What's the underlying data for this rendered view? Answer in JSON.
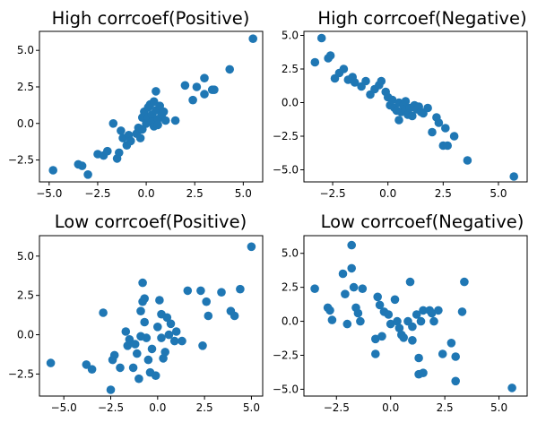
{
  "chart_data": [
    {
      "type": "scatter",
      "title": "High corrcoef(Positive)",
      "xlim": [
        -5.5,
        6.0
      ],
      "ylim": [
        -4.0,
        6.3
      ],
      "xticks": [
        -5.0,
        -2.5,
        0.0,
        2.5,
        5.0
      ],
      "xtick_labels": [
        "−5.0",
        "−2.5",
        "0.0",
        "2.5",
        "5.0"
      ],
      "yticks": [
        -2.5,
        0.0,
        2.5,
        5.0
      ],
      "ytick_labels": [
        "−2.5",
        "0.0",
        "2.5",
        "5.0"
      ],
      "color": "#1f77b4",
      "points": [
        [
          -4.8,
          -3.2
        ],
        [
          -3.5,
          -2.8
        ],
        [
          -3.3,
          -2.9
        ],
        [
          -3.0,
          -3.5
        ],
        [
          -2.5,
          -2.1
        ],
        [
          -2.2,
          -2.2
        ],
        [
          -2.0,
          -1.9
        ],
        [
          -1.5,
          -2.4
        ],
        [
          -1.4,
          -2.0
        ],
        [
          -1.7,
          0.0
        ],
        [
          -1.3,
          -0.5
        ],
        [
          -1.2,
          -1.0
        ],
        [
          -1.0,
          -1.5
        ],
        [
          -0.9,
          -0.8
        ],
        [
          -0.8,
          -1.2
        ],
        [
          -0.5,
          -0.7
        ],
        [
          -0.4,
          -0.3
        ],
        [
          -0.3,
          -1.0
        ],
        [
          -0.2,
          -0.4
        ],
        [
          -0.2,
          0.4
        ],
        [
          -0.1,
          0.8
        ],
        [
          0.0,
          0.0
        ],
        [
          0.1,
          1.1
        ],
        [
          0.1,
          0.4
        ],
        [
          0.2,
          1.3
        ],
        [
          0.3,
          0.6
        ],
        [
          0.3,
          0.1
        ],
        [
          0.4,
          -0.2
        ],
        [
          0.4,
          1.5
        ],
        [
          0.5,
          2.2
        ],
        [
          0.5,
          0.9
        ],
        [
          0.6,
          0.3
        ],
        [
          0.6,
          -0.1
        ],
        [
          0.7,
          1.2
        ],
        [
          0.8,
          0.6
        ],
        [
          0.9,
          0.8
        ],
        [
          1.0,
          0.2
        ],
        [
          1.5,
          0.2
        ],
        [
          2.0,
          2.6
        ],
        [
          2.4,
          1.6
        ],
        [
          2.6,
          2.5
        ],
        [
          3.0,
          2.0
        ],
        [
          3.0,
          3.1
        ],
        [
          3.4,
          2.3
        ],
        [
          3.5,
          2.3
        ],
        [
          4.3,
          3.7
        ],
        [
          5.5,
          5.8
        ]
      ]
    },
    {
      "type": "scatter",
      "title": "High corrcoef(Negative)",
      "xlim": [
        -3.8,
        6.3
      ],
      "ylim": [
        -5.9,
        5.3
      ],
      "xticks": [
        -2.5,
        0.0,
        2.5,
        5.0
      ],
      "xtick_labels": [
        "−2.5",
        "0.0",
        "2.5",
        "5.0"
      ],
      "yticks": [
        -5.0,
        -2.5,
        0.0,
        2.5,
        5.0
      ],
      "ytick_labels": [
        "−5.0",
        "−2.5",
        "0.0",
        "2.5",
        "5.0"
      ],
      "color": "#1f77b4",
      "points": [
        [
          -3.3,
          3.0
        ],
        [
          -3.0,
          4.8
        ],
        [
          -2.7,
          3.3
        ],
        [
          -2.6,
          3.5
        ],
        [
          -2.4,
          1.8
        ],
        [
          -2.2,
          2.2
        ],
        [
          -2.0,
          2.5
        ],
        [
          -1.8,
          1.7
        ],
        [
          -1.6,
          1.9
        ],
        [
          -1.5,
          1.5
        ],
        [
          -1.2,
          1.2
        ],
        [
          -1.0,
          1.6
        ],
        [
          -0.8,
          0.6
        ],
        [
          -0.6,
          1.0
        ],
        [
          -0.4,
          1.3
        ],
        [
          -0.3,
          1.6
        ],
        [
          -0.1,
          0.8
        ],
        [
          0.0,
          0.4
        ],
        [
          0.1,
          -0.2
        ],
        [
          0.2,
          0.2
        ],
        [
          0.3,
          -0.4
        ],
        [
          0.4,
          -0.6
        ],
        [
          0.5,
          0.0
        ],
        [
          0.5,
          -1.3
        ],
        [
          0.6,
          -0.7
        ],
        [
          0.7,
          -0.2
        ],
        [
          0.8,
          0.1
        ],
        [
          0.8,
          -0.6
        ],
        [
          0.9,
          -0.9
        ],
        [
          1.0,
          -0.4
        ],
        [
          1.1,
          -1.0
        ],
        [
          1.2,
          -0.2
        ],
        [
          1.3,
          -0.5
        ],
        [
          1.4,
          -0.3
        ],
        [
          1.5,
          -0.7
        ],
        [
          1.6,
          -0.8
        ],
        [
          1.8,
          -0.4
        ],
        [
          2.0,
          -2.2
        ],
        [
          2.2,
          -1.1
        ],
        [
          2.3,
          -1.5
        ],
        [
          2.5,
          -3.2
        ],
        [
          2.6,
          -1.9
        ],
        [
          2.7,
          -3.2
        ],
        [
          3.0,
          -2.5
        ],
        [
          3.6,
          -4.3
        ],
        [
          5.7,
          -5.5
        ]
      ]
    },
    {
      "type": "scatter",
      "title": "Low corrcoef(Positive)",
      "xlim": [
        -6.3,
        5.6
      ],
      "ylim": [
        -3.9,
        6.3
      ],
      "xticks": [
        -5.0,
        -2.5,
        0.0,
        2.5,
        5.0
      ],
      "xtick_labels": [
        "−5.0",
        "−2.5",
        "0.0",
        "2.5",
        "5.0"
      ],
      "yticks": [
        -2.5,
        0.0,
        2.5,
        5.0
      ],
      "ytick_labels": [
        "−2.5",
        "0.0",
        "2.5",
        "5.0"
      ],
      "color": "#1f77b4",
      "points": [
        [
          -5.7,
          -1.8
        ],
        [
          -3.8,
          -1.9
        ],
        [
          -3.5,
          -2.2
        ],
        [
          -2.9,
          1.4
        ],
        [
          -2.5,
          -3.5
        ],
        [
          -2.4,
          -1.6
        ],
        [
          -2.3,
          -1.3
        ],
        [
          -2.0,
          -2.1
        ],
        [
          -1.7,
          0.2
        ],
        [
          -1.6,
          -0.7
        ],
        [
          -1.5,
          -0.3
        ],
        [
          -1.3,
          -2.1
        ],
        [
          -1.2,
          -0.6
        ],
        [
          -1.1,
          -1.2
        ],
        [
          -1.0,
          -2.8
        ],
        [
          -0.9,
          -0.1
        ],
        [
          -0.9,
          1.5
        ],
        [
          -0.8,
          2.1
        ],
        [
          -0.8,
          3.3
        ],
        [
          -0.7,
          2.3
        ],
        [
          -0.7,
          0.8
        ],
        [
          -0.6,
          -0.2
        ],
        [
          -0.5,
          -1.6
        ],
        [
          -0.4,
          -2.4
        ],
        [
          -0.3,
          -0.9
        ],
        [
          -0.1,
          -2.6
        ],
        [
          0.0,
          0.5
        ],
        [
          0.1,
          2.2
        ],
        [
          0.2,
          1.3
        ],
        [
          0.2,
          -0.2
        ],
        [
          0.3,
          -1.5
        ],
        [
          0.4,
          -1.1
        ],
        [
          0.5,
          1.1
        ],
        [
          0.6,
          0.0
        ],
        [
          0.7,
          0.7
        ],
        [
          0.9,
          -0.4
        ],
        [
          1.0,
          0.2
        ],
        [
          1.3,
          -0.4
        ],
        [
          1.6,
          2.8
        ],
        [
          2.3,
          2.8
        ],
        [
          2.4,
          -0.7
        ],
        [
          2.6,
          2.1
        ],
        [
          2.7,
          1.2
        ],
        [
          3.4,
          2.7
        ],
        [
          3.9,
          1.5
        ],
        [
          4.1,
          1.2
        ],
        [
          4.4,
          2.9
        ],
        [
          5.0,
          5.6
        ]
      ]
    },
    {
      "type": "scatter",
      "title": "Low corrcoef(Negative)",
      "xlim": [
        -4.0,
        6.3
      ],
      "ylim": [
        -5.5,
        6.3
      ],
      "xticks": [
        -2.5,
        0.0,
        2.5,
        5.0
      ],
      "xtick_labels": [
        "−2.5",
        "0.0",
        "2.5",
        "5.0"
      ],
      "yticks": [
        -5.0,
        -2.5,
        0.0,
        2.5,
        5.0
      ],
      "ytick_labels": [
        "−5.0",
        "−2.5",
        "0.0",
        "2.5",
        "5.0"
      ],
      "color": "#1f77b4",
      "points": [
        [
          -3.5,
          2.4
        ],
        [
          -2.9,
          1.0
        ],
        [
          -2.8,
          0.8
        ],
        [
          -2.7,
          0.1
        ],
        [
          -2.2,
          3.5
        ],
        [
          -2.1,
          2.0
        ],
        [
          -2.0,
          -0.2
        ],
        [
          -1.8,
          5.6
        ],
        [
          -1.8,
          3.9
        ],
        [
          -1.7,
          2.5
        ],
        [
          -1.6,
          1.0
        ],
        [
          -1.5,
          0.6
        ],
        [
          -1.4,
          0.0
        ],
        [
          -1.3,
          2.4
        ],
        [
          -0.7,
          -2.4
        ],
        [
          -0.7,
          -1.3
        ],
        [
          -0.6,
          1.8
        ],
        [
          -0.5,
          1.2
        ],
        [
          -0.4,
          -1.1
        ],
        [
          -0.3,
          0.7
        ],
        [
          -0.1,
          0.5
        ],
        [
          0.0,
          -0.2
        ],
        [
          0.2,
          1.6
        ],
        [
          0.3,
          0.0
        ],
        [
          0.4,
          -0.5
        ],
        [
          0.5,
          -1.0
        ],
        [
          0.6,
          -1.2
        ],
        [
          0.8,
          0.0
        ],
        [
          0.9,
          2.9
        ],
        [
          1.0,
          -0.4
        ],
        [
          1.0,
          -1.4
        ],
        [
          1.2,
          0.5
        ],
        [
          1.3,
          -3.9
        ],
        [
          1.3,
          -2.7
        ],
        [
          1.4,
          0.0
        ],
        [
          1.5,
          0.8
        ],
        [
          1.5,
          -3.8
        ],
        [
          1.8,
          0.8
        ],
        [
          1.9,
          0.6
        ],
        [
          2.0,
          0.0
        ],
        [
          2.2,
          0.8
        ],
        [
          2.4,
          -2.4
        ],
        [
          2.8,
          -1.6
        ],
        [
          3.0,
          -2.6
        ],
        [
          3.0,
          -4.4
        ],
        [
          3.3,
          0.7
        ],
        [
          3.4,
          2.9
        ],
        [
          5.6,
          -4.9
        ]
      ]
    }
  ]
}
